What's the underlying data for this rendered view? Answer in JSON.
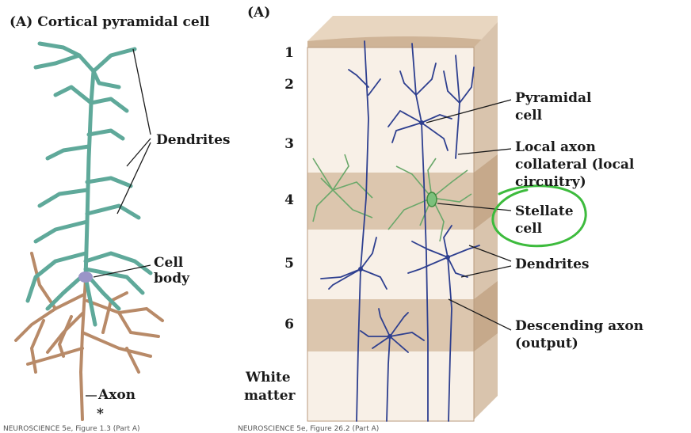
{
  "left_panel": {
    "title": "(A)  Cortical pyramidal cell",
    "labels": {
      "dendrites": "Dendrites",
      "cell_body_line1": "Cell",
      "cell_body_line2": "body",
      "axon": "Axon",
      "asterisk": "*"
    },
    "colors": {
      "dendrite": "#5fa99a",
      "axon": "#b88a68"
    }
  },
  "right_panel": {
    "title": "(A)",
    "layers": [
      "1",
      "2",
      "3",
      "4",
      "5",
      "6"
    ],
    "white_matter_line1": "White",
    "white_matter_line2": "matter",
    "labels": {
      "pyramidal_line1": "Pyramidal",
      "pyramidal_line2": "cell",
      "local_axon_line1": "Local axon",
      "local_axon_line2": "collateral (local",
      "local_axon_line3": "circuitry)",
      "stellate_line1": "Stellate",
      "stellate_line2": "cell",
      "dendrites": "Dendrites",
      "descending_line1": "Descending axon",
      "descending_line2": "(output)"
    },
    "colors": {
      "neuron": "#2e3f8f",
      "stellate": "#6aa86a",
      "annotation_circle": "#3dbb3d",
      "layer_light": "#f7efe6",
      "layer_dark": "#d8c2aa"
    }
  },
  "footer": {
    "left": "NEUROSCIENCE 5e, Figure 1.3 (Part A)",
    "right": "NEUROSCIENCE 5e, Figure 26.2 (Part A)"
  }
}
